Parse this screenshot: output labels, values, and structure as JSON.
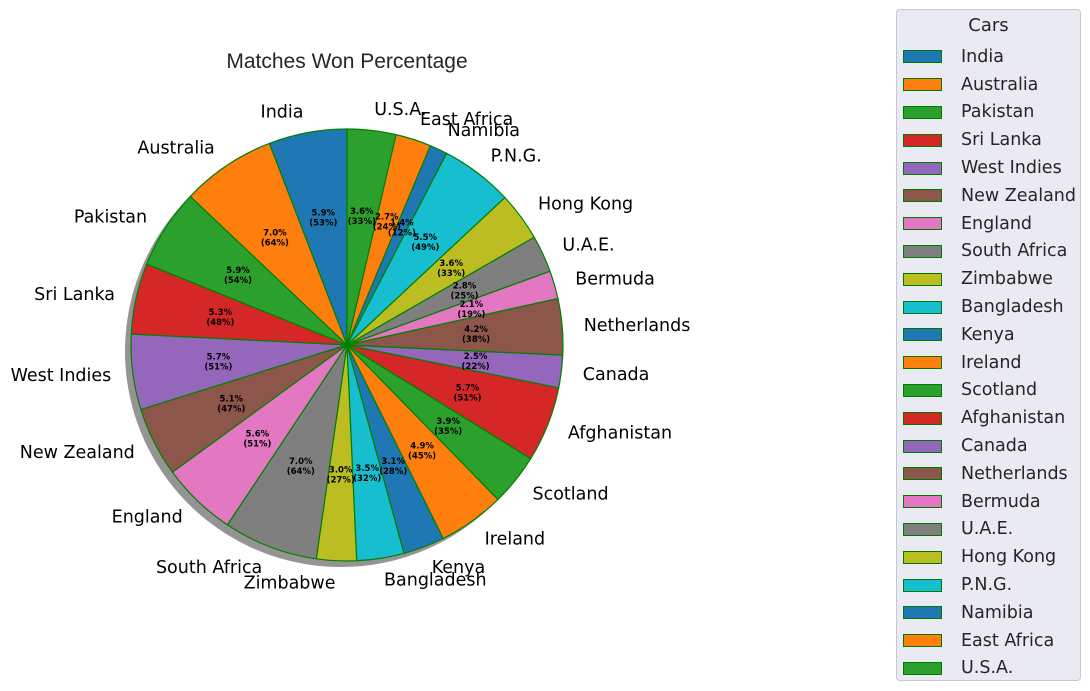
{
  "chart_data": {
    "type": "pie",
    "title": "Matches Won Percentage",
    "legend_title": "Cars",
    "legend_position": "right",
    "shadow": true,
    "edge_color": "#008000",
    "slices": [
      {
        "label": "India",
        "value": 53,
        "pct_label": "5.9%\n(53%)",
        "color": "#1f77b4"
      },
      {
        "label": "Australia",
        "value": 64,
        "pct_label": "7.0%\n(64%)",
        "color": "#ff7f0e"
      },
      {
        "label": "Pakistan",
        "value": 54,
        "pct_label": "5.9%\n(54%)",
        "color": "#2ca02c"
      },
      {
        "label": "Sri Lanka",
        "value": 48,
        "pct_label": "5.3%\n(48%)",
        "color": "#d62728"
      },
      {
        "label": "West Indies",
        "value": 51,
        "pct_label": "5.7%\n(51%)",
        "color": "#9467bd"
      },
      {
        "label": "New Zealand",
        "value": 47,
        "pct_label": "5.1%\n(47%)",
        "color": "#8c564b"
      },
      {
        "label": "England",
        "value": 51,
        "pct_label": "5.6%\n(51%)",
        "color": "#e377c2"
      },
      {
        "label": "South Africa",
        "value": 64,
        "pct_label": "7.0%\n(64%)",
        "color": "#7f7f7f"
      },
      {
        "label": "Zimbabwe",
        "value": 27,
        "pct_label": "3.0%\n(27%)",
        "color": "#bcbd22"
      },
      {
        "label": "Bangladesh",
        "value": 32,
        "pct_label": "3.5%\n(32%)",
        "color": "#17becf"
      },
      {
        "label": "Kenya",
        "value": 28,
        "pct_label": "3.1%\n(28%)",
        "color": "#1f77b4"
      },
      {
        "label": "Ireland",
        "value": 45,
        "pct_label": "4.9%\n(45%)",
        "color": "#ff7f0e"
      },
      {
        "label": "Scotland",
        "value": 35,
        "pct_label": "3.9%\n(35%)",
        "color": "#2ca02c"
      },
      {
        "label": "Afghanistan",
        "value": 51,
        "pct_label": "5.7%\n(51%)",
        "color": "#d62728"
      },
      {
        "label": "Canada",
        "value": 22,
        "pct_label": "2.5%\n(22%)",
        "color": "#9467bd"
      },
      {
        "label": "Netherlands",
        "value": 38,
        "pct_label": "4.2%\n(38%)",
        "color": "#8c564b"
      },
      {
        "label": "Bermuda",
        "value": 19,
        "pct_label": "2.1%\n(19%)",
        "color": "#e377c2"
      },
      {
        "label": "U.A.E.",
        "value": 25,
        "pct_label": "2.8%\n(25%)",
        "color": "#7f7f7f"
      },
      {
        "label": "Hong Kong",
        "value": 33,
        "pct_label": "3.6%\n(33%)",
        "color": "#bcbd22"
      },
      {
        "label": "P.N.G.",
        "value": 49,
        "pct_label": "5.5%\n(49%)",
        "color": "#17becf"
      },
      {
        "label": "Namibia",
        "value": 12,
        "pct_label": "1.4%\n(12%)",
        "color": "#1f77b4"
      },
      {
        "label": "East Africa",
        "value": 24,
        "pct_label": "2.7%\n(24%)",
        "color": "#ff7f0e"
      },
      {
        "label": "U.S.A.",
        "value": 33,
        "pct_label": "3.6%\n(33%)",
        "color": "#2ca02c"
      }
    ]
  }
}
